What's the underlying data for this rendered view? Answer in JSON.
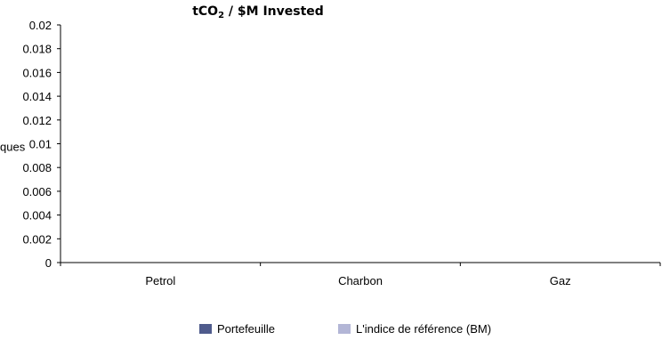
{
  "chart_data": {
    "type": "bar",
    "title_main": "tCO",
    "title_sub": "2",
    "title_rest": " / $M Invested",
    "ylabel": "ques",
    "categories": [
      "Petrol",
      "Charbon",
      "Gaz"
    ],
    "ylim": [
      0,
      0.02
    ],
    "yticks": [
      "0.02",
      "0.018",
      "0.016",
      "0.014",
      "0.012",
      "0.01",
      "0.008",
      "0.006",
      "0.004",
      "0.002",
      "0"
    ],
    "grid": false,
    "legend_position": "bottom",
    "series": [
      {
        "name": "Portefeuille",
        "values": [
          0,
          0,
          0
        ],
        "color": "#4f5b8c"
      },
      {
        "name": "L'indice de référence (BM)",
        "values": [
          0,
          0,
          0
        ],
        "color": "#b3b6d6"
      }
    ]
  }
}
